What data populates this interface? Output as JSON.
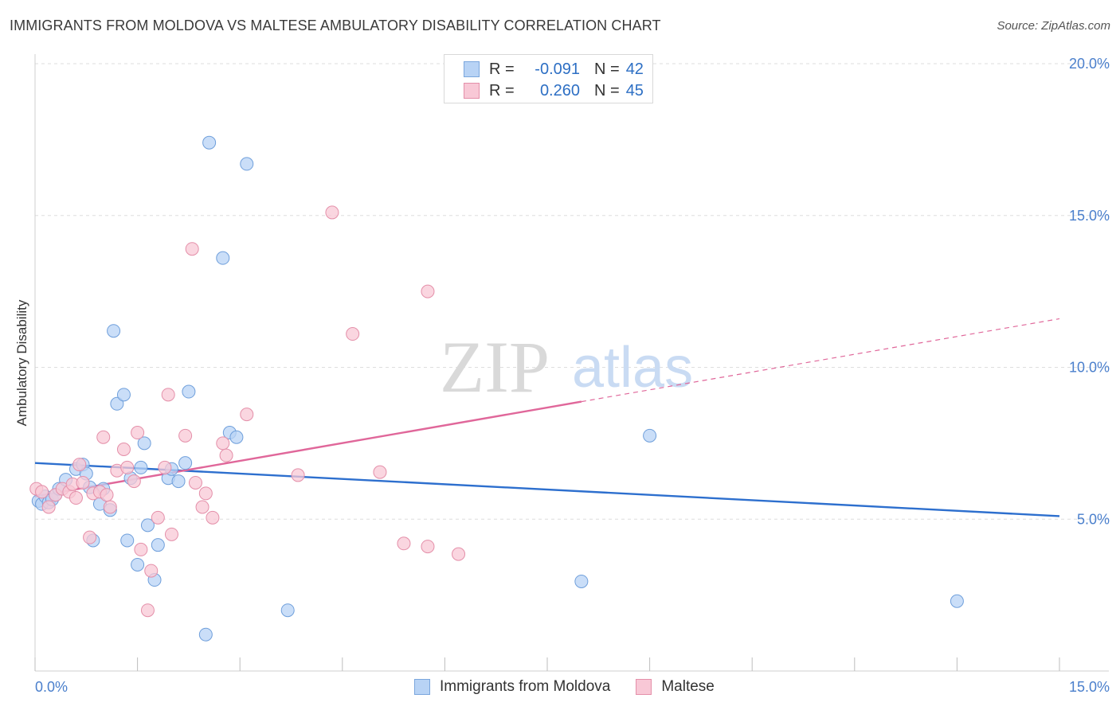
{
  "header": {
    "title": "IMMIGRANTS FROM MOLDOVA VS MALTESE AMBULATORY DISABILITY CORRELATION CHART",
    "source": "Source: ZipAtlas.com"
  },
  "legend_top": {
    "rows": [
      {
        "swatch": "blue",
        "r_label": "R =",
        "r_value": "-0.091",
        "n_label": "N =",
        "n_value": "42"
      },
      {
        "swatch": "pink",
        "r_label": "R =",
        "r_value": "0.260",
        "n_label": "N =",
        "n_value": "45"
      }
    ]
  },
  "legend_bottom": {
    "items": [
      {
        "label": "Immigrants from Moldova",
        "swatch": "blue"
      },
      {
        "label": "Maltese",
        "swatch": "pink"
      }
    ]
  },
  "watermark": {
    "zip": "ZIP",
    "atlas": "atlas"
  },
  "colors": {
    "blue_fill": "#b8d3f5",
    "blue_stroke": "#6f9fdb",
    "blue_line": "#2d6fce",
    "pink_fill": "#f8c8d6",
    "pink_stroke": "#e48fa9",
    "pink_line": "#e0679a",
    "axis_text": "#4a7fcc",
    "grid": "#dedede"
  },
  "chart_data": {
    "type": "scatter",
    "title": "IMMIGRANTS FROM MOLDOVA VS MALTESE AMBULATORY DISABILITY CORRELATION CHART",
    "xlabel": "",
    "ylabel": "Ambulatory Disability",
    "xlim": [
      0,
      15
    ],
    "ylim": [
      0,
      20
    ],
    "x_tick_labels": [
      {
        "value": 0,
        "label": "0.0%"
      },
      {
        "value": 15,
        "label": "15.0%"
      }
    ],
    "x_minor_ticks": [
      0,
      1.5,
      3,
      4.5,
      6,
      7.5,
      9,
      10.5,
      12,
      13.5,
      15
    ],
    "y_ticks": [
      {
        "value": 5,
        "label": "5.0%"
      },
      {
        "value": 10,
        "label": "10.0%"
      },
      {
        "value": 15,
        "label": "15.0%"
      },
      {
        "value": 20,
        "label": "20.0%"
      }
    ],
    "series": [
      {
        "name": "Immigrants from Moldova",
        "color": "blue",
        "trend": {
          "x0": 0,
          "y0": 6.85,
          "x1": 15,
          "y1": 5.1,
          "solid_to": 15
        },
        "points": [
          [
            0.05,
            5.6
          ],
          [
            0.1,
            5.5
          ],
          [
            0.15,
            5.75
          ],
          [
            0.2,
            5.55
          ],
          [
            0.25,
            5.65
          ],
          [
            0.3,
            5.8
          ],
          [
            0.35,
            6.0
          ],
          [
            0.45,
            6.3
          ],
          [
            0.6,
            6.65
          ],
          [
            0.7,
            6.8
          ],
          [
            0.75,
            6.5
          ],
          [
            0.8,
            6.05
          ],
          [
            0.95,
            5.5
          ],
          [
            1.0,
            6.0
          ],
          [
            1.1,
            5.3
          ],
          [
            1.15,
            11.2
          ],
          [
            1.2,
            8.8
          ],
          [
            1.3,
            9.1
          ],
          [
            1.35,
            4.3
          ],
          [
            1.4,
            6.35
          ],
          [
            1.5,
            3.5
          ],
          [
            1.55,
            6.7
          ],
          [
            1.6,
            7.5
          ],
          [
            1.65,
            4.8
          ],
          [
            1.75,
            3.0
          ],
          [
            1.8,
            4.15
          ],
          [
            1.95,
            6.35
          ],
          [
            2.0,
            6.65
          ],
          [
            2.1,
            6.25
          ],
          [
            2.2,
            6.85
          ],
          [
            2.25,
            9.2
          ],
          [
            2.5,
            1.2
          ],
          [
            2.55,
            17.4
          ],
          [
            2.75,
            13.6
          ],
          [
            2.85,
            7.85
          ],
          [
            2.95,
            7.7
          ],
          [
            3.1,
            16.7
          ],
          [
            3.7,
            2.0
          ],
          [
            0.85,
            4.3
          ],
          [
            9.0,
            7.75
          ],
          [
            8.0,
            2.95
          ],
          [
            13.5,
            2.3
          ]
        ]
      },
      {
        "name": "Maltese",
        "color": "pink",
        "trend": {
          "x0": 0,
          "y0": 5.75,
          "x1": 15,
          "y1": 11.6,
          "solid_to": 8.0
        },
        "points": [
          [
            0.02,
            6.0
          ],
          [
            0.1,
            5.9
          ],
          [
            0.2,
            5.4
          ],
          [
            0.3,
            5.8
          ],
          [
            0.4,
            6.0
          ],
          [
            0.5,
            5.9
          ],
          [
            0.55,
            6.15
          ],
          [
            0.65,
            6.8
          ],
          [
            0.7,
            6.2
          ],
          [
            0.8,
            4.4
          ],
          [
            0.85,
            5.85
          ],
          [
            0.95,
            5.9
          ],
          [
            1.0,
            7.7
          ],
          [
            1.1,
            5.4
          ],
          [
            1.2,
            6.6
          ],
          [
            1.3,
            7.3
          ],
          [
            1.35,
            6.7
          ],
          [
            1.45,
            6.25
          ],
          [
            1.5,
            7.85
          ],
          [
            1.55,
            4.0
          ],
          [
            1.65,
            2.0
          ],
          [
            1.7,
            3.3
          ],
          [
            1.8,
            5.05
          ],
          [
            1.9,
            6.7
          ],
          [
            1.95,
            9.1
          ],
          [
            2.0,
            4.5
          ],
          [
            2.2,
            7.75
          ],
          [
            2.3,
            13.9
          ],
          [
            2.35,
            6.2
          ],
          [
            2.45,
            5.4
          ],
          [
            2.5,
            5.85
          ],
          [
            2.6,
            5.05
          ],
          [
            2.75,
            7.5
          ],
          [
            2.8,
            7.1
          ],
          [
            3.1,
            8.45
          ],
          [
            3.85,
            6.45
          ],
          [
            4.35,
            15.1
          ],
          [
            4.65,
            11.1
          ],
          [
            5.05,
            6.55
          ],
          [
            5.4,
            4.2
          ],
          [
            5.75,
            4.1
          ],
          [
            5.75,
            12.5
          ],
          [
            6.2,
            3.85
          ],
          [
            0.6,
            5.7
          ],
          [
            1.05,
            5.8
          ]
        ]
      }
    ]
  }
}
